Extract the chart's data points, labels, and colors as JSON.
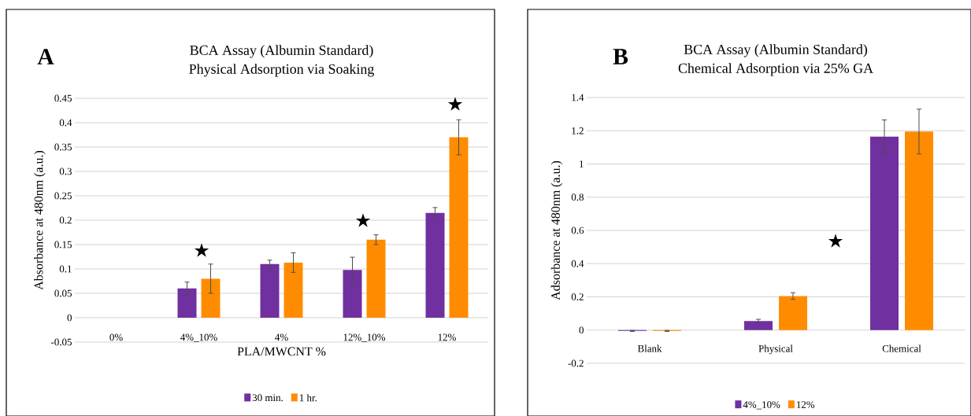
{
  "chart_data": [
    {
      "type": "bar",
      "title": "BCA Assay (Albumin Standard)",
      "subtitle": "Physical Adsorption via Soaking",
      "xlabel": "PLA/MWCNT %",
      "ylabel": "Absorbance at 480nm (a.u.)",
      "categories": [
        "0%",
        "4%_10%",
        "4%",
        "12%_10%",
        "12%"
      ],
      "series": [
        {
          "name": "30 min.",
          "color": "#7030a0",
          "values": [
            0,
            0.06,
            0.11,
            0.098,
            0.215
          ],
          "errors": [
            null,
            0.013,
            0.008,
            0.026,
            0.011
          ]
        },
        {
          "name": "1 hr.",
          "color": "#ff8c00",
          "values": [
            0,
            0.08,
            0.113,
            0.16,
            0.37
          ],
          "errors": [
            null,
            0.03,
            0.02,
            0.01,
            0.036
          ]
        }
      ],
      "ylim": [
        -0.05,
        0.45
      ],
      "yticks": [
        -0.05,
        0,
        0.05,
        0.1,
        0.15,
        0.2,
        0.25,
        0.3,
        0.35,
        0.4,
        0.45
      ],
      "grid": "y",
      "legend": "bottom",
      "annotations": [
        "A",
        "★",
        "★",
        "★"
      ]
    },
    {
      "type": "bar",
      "title": "BCA Assay (Albumin Standard)",
      "subtitle": "Chemical Adsorption via 25% GA",
      "ylabel": "Adsorbance at 480nm (a.u.)",
      "categories": [
        "Blank",
        "Physical",
        "Chemical"
      ],
      "series": [
        {
          "name": "4%_10%",
          "color": "#7030a0",
          "values": [
            -0.005,
            0.055,
            1.165
          ],
          "errors": [
            0.003,
            0.01,
            0.1
          ]
        },
        {
          "name": "12%",
          "color": "#ff8c00",
          "values": [
            -0.005,
            0.205,
            1.195
          ],
          "errors": [
            0.003,
            0.02,
            0.135
          ]
        }
      ],
      "ylim": [
        -0.2,
        1.4
      ],
      "yticks": [
        -0.2,
        0,
        0.2,
        0.4,
        0.6,
        0.8,
        1,
        1.2,
        1.4
      ],
      "grid": "y",
      "legend": "bottom",
      "annotations": [
        "B",
        "★"
      ]
    }
  ]
}
